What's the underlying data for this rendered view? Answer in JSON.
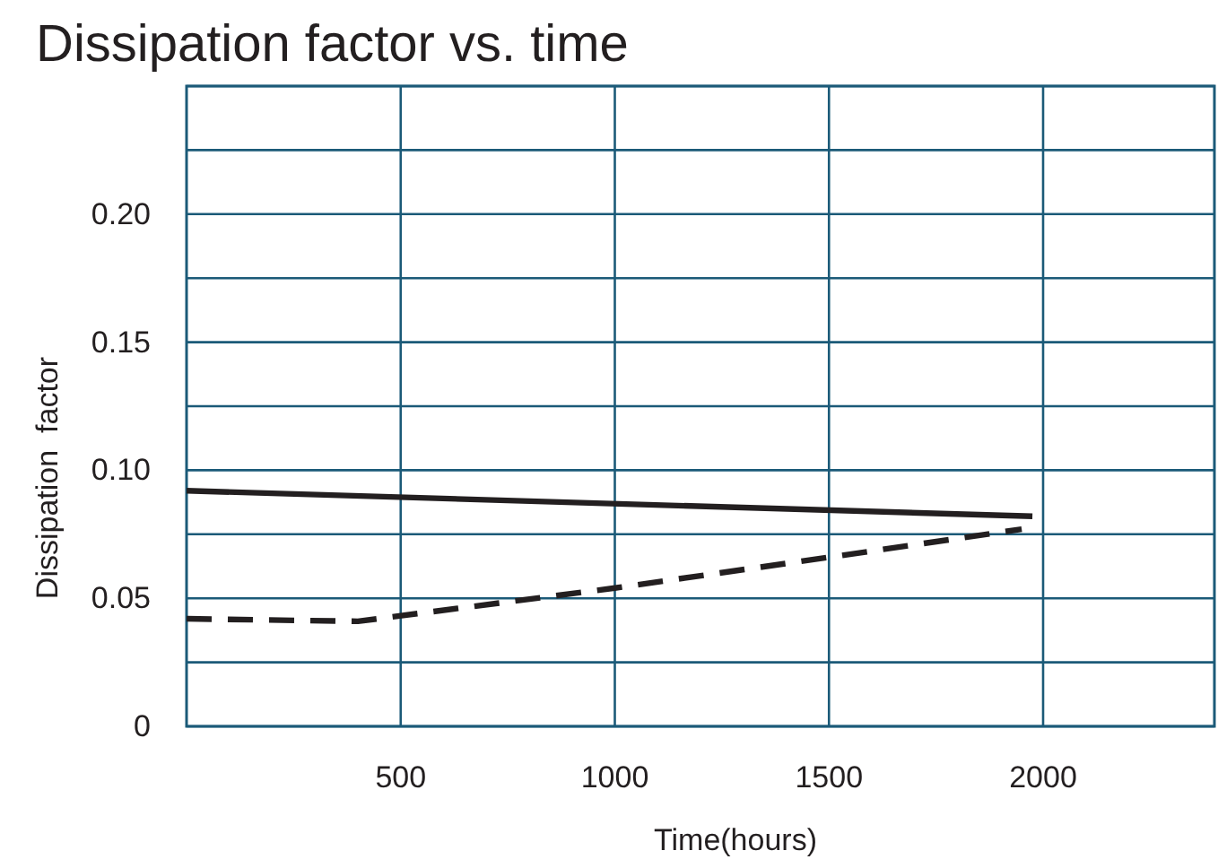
{
  "chart_data": {
    "type": "line",
    "title": "Dissipation factor vs. time",
    "xlabel": "Time(hours)",
    "ylabel": "Dissipation  factor",
    "xlim": [
      0,
      2400
    ],
    "xticks": [
      500,
      1000,
      1500,
      2000
    ],
    "ylim": [
      0,
      0.25
    ],
    "yticks": [
      0,
      {
        "value": 0.025,
        "label": null
      },
      {
        "value": 0.05,
        "label": "0.05"
      },
      {
        "value": 0.075,
        "label": null
      },
      {
        "value": 0.1,
        "label": "0.10"
      },
      {
        "value": 0.125,
        "label": null
      },
      {
        "value": 0.15,
        "label": "0.15"
      },
      {
        "value": 0.175,
        "label": null
      },
      {
        "value": 0.2,
        "label": "0.20"
      },
      {
        "value": 0.225,
        "label": null
      },
      {
        "value": 0.25,
        "label": null
      }
    ],
    "grid": true,
    "marker": "none",
    "series": [
      {
        "color": "#231f20",
        "line_style": "solid",
        "x": [
          0,
          1975
        ],
        "values": [
          0.092,
          0.082
        ]
      },
      {
        "color": "#231f20",
        "line_style": "dashed",
        "x": [
          0,
          400,
          1000,
          1500,
          1950
        ],
        "values": [
          0.042,
          0.041,
          0.054,
          0.066,
          0.077
        ]
      }
    ]
  }
}
